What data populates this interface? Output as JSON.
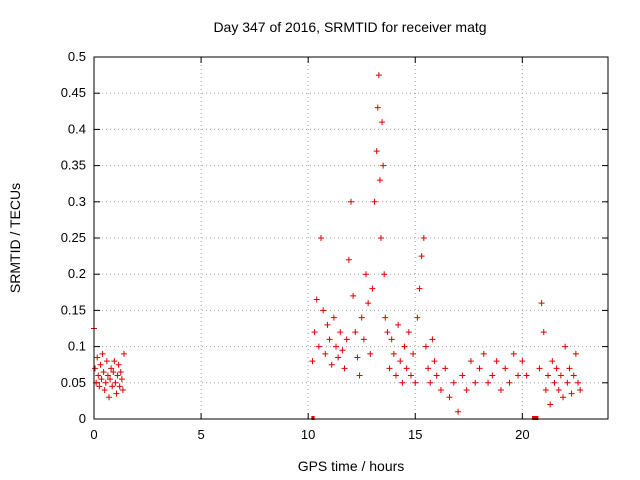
{
  "chart_data": {
    "type": "scatter",
    "title": "Day 347 of 2016, SRMTID for receiver matg",
    "xlabel": "GPS time / hours",
    "ylabel": "SRMTID / TECUs",
    "xlim": [
      0,
      24
    ],
    "ylim": [
      0,
      0.5
    ],
    "xticks": [
      0,
      5,
      10,
      15,
      20
    ],
    "yticks": [
      0,
      0.05,
      0.1,
      0.15,
      0.2,
      0.25,
      0.3,
      0.35,
      0.4,
      0.45,
      0.5
    ],
    "ytick_labels": [
      "0",
      "0.05",
      "0.1",
      "0.15",
      "0.2",
      "0.25",
      "0.3",
      "0.35",
      "0.4",
      "0.45",
      "0.5"
    ],
    "grid": true,
    "marker": "+",
    "marker_color": "#e00000",
    "series": [
      {
        "name": "SRMTID",
        "x": [
          0.0,
          0.05,
          0.1,
          0.15,
          0.2,
          0.25,
          0.3,
          0.35,
          0.4,
          0.45,
          0.5,
          0.55,
          0.6,
          0.65,
          0.7,
          0.75,
          0.8,
          0.85,
          0.9,
          0.95,
          1.0,
          1.05,
          1.1,
          1.15,
          1.2,
          1.25,
          1.3,
          1.35,
          1.4,
          10.2,
          10.3,
          10.4,
          10.5,
          10.6,
          10.7,
          10.8,
          10.9,
          11.0,
          11.1,
          11.2,
          11.3,
          11.4,
          11.5,
          11.6,
          11.7,
          11.8,
          11.9,
          12.0,
          12.1,
          12.2,
          12.3,
          12.4,
          12.5,
          12.6,
          12.7,
          12.8,
          12.9,
          13.0,
          13.1,
          13.2,
          13.25,
          13.3,
          13.35,
          13.4,
          13.45,
          13.5,
          13.55,
          13.6,
          13.7,
          13.8,
          13.9,
          14.0,
          14.1,
          14.2,
          14.3,
          14.4,
          14.5,
          14.6,
          14.7,
          14.8,
          14.9,
          15.0,
          15.1,
          15.2,
          15.3,
          15.4,
          15.5,
          15.6,
          15.7,
          15.8,
          15.9,
          16.0,
          16.2,
          16.4,
          16.6,
          16.8,
          17.0,
          17.2,
          17.4,
          17.6,
          17.8,
          18.0,
          18.2,
          18.4,
          18.6,
          18.8,
          19.0,
          19.2,
          19.4,
          19.6,
          19.8,
          20.0,
          20.2,
          20.8,
          20.9,
          21.0,
          21.1,
          21.2,
          21.3,
          21.4,
          21.5,
          21.6,
          21.7,
          21.8,
          21.9,
          22.0,
          22.1,
          22.2,
          22.3,
          22.4,
          22.5,
          22.6,
          22.7
        ],
        "y": [
          0.125,
          0.07,
          0.05,
          0.085,
          0.06,
          0.045,
          0.075,
          0.055,
          0.09,
          0.065,
          0.04,
          0.05,
          0.08,
          0.06,
          0.03,
          0.055,
          0.07,
          0.045,
          0.065,
          0.08,
          0.05,
          0.035,
          0.06,
          0.075,
          0.045,
          0.065,
          0.055,
          0.04,
          0.09,
          0.08,
          0.12,
          0.165,
          0.1,
          0.25,
          0.15,
          0.09,
          0.13,
          0.11,
          0.075,
          0.14,
          0.1,
          0.085,
          0.12,
          0.095,
          0.07,
          0.11,
          0.22,
          0.3,
          0.17,
          0.12,
          0.085,
          0.06,
          0.14,
          0.11,
          0.2,
          0.16,
          0.09,
          0.18,
          0.3,
          0.37,
          0.43,
          0.475,
          0.33,
          0.25,
          0.41,
          0.35,
          0.2,
          0.14,
          0.12,
          0.07,
          0.11,
          0.09,
          0.06,
          0.13,
          0.08,
          0.05,
          0.1,
          0.07,
          0.12,
          0.06,
          0.09,
          0.05,
          0.14,
          0.18,
          0.225,
          0.25,
          0.1,
          0.07,
          0.05,
          0.11,
          0.08,
          0.06,
          0.04,
          0.07,
          0.03,
          0.05,
          0.01,
          0.06,
          0.04,
          0.08,
          0.05,
          0.07,
          0.09,
          0.05,
          0.06,
          0.08,
          0.04,
          0.07,
          0.05,
          0.09,
          0.06,
          0.08,
          0.06,
          0.07,
          0.16,
          0.12,
          0.04,
          0.06,
          0.02,
          0.08,
          0.05,
          0.07,
          0.04,
          0.06,
          0.03,
          0.1,
          0.05,
          0.07,
          0.035,
          0.06,
          0.09,
          0.05,
          0.04
        ],
        "zero_bars": [
          [
            10.15,
            10.3
          ],
          [
            20.45,
            20.75
          ]
        ]
      }
    ]
  }
}
